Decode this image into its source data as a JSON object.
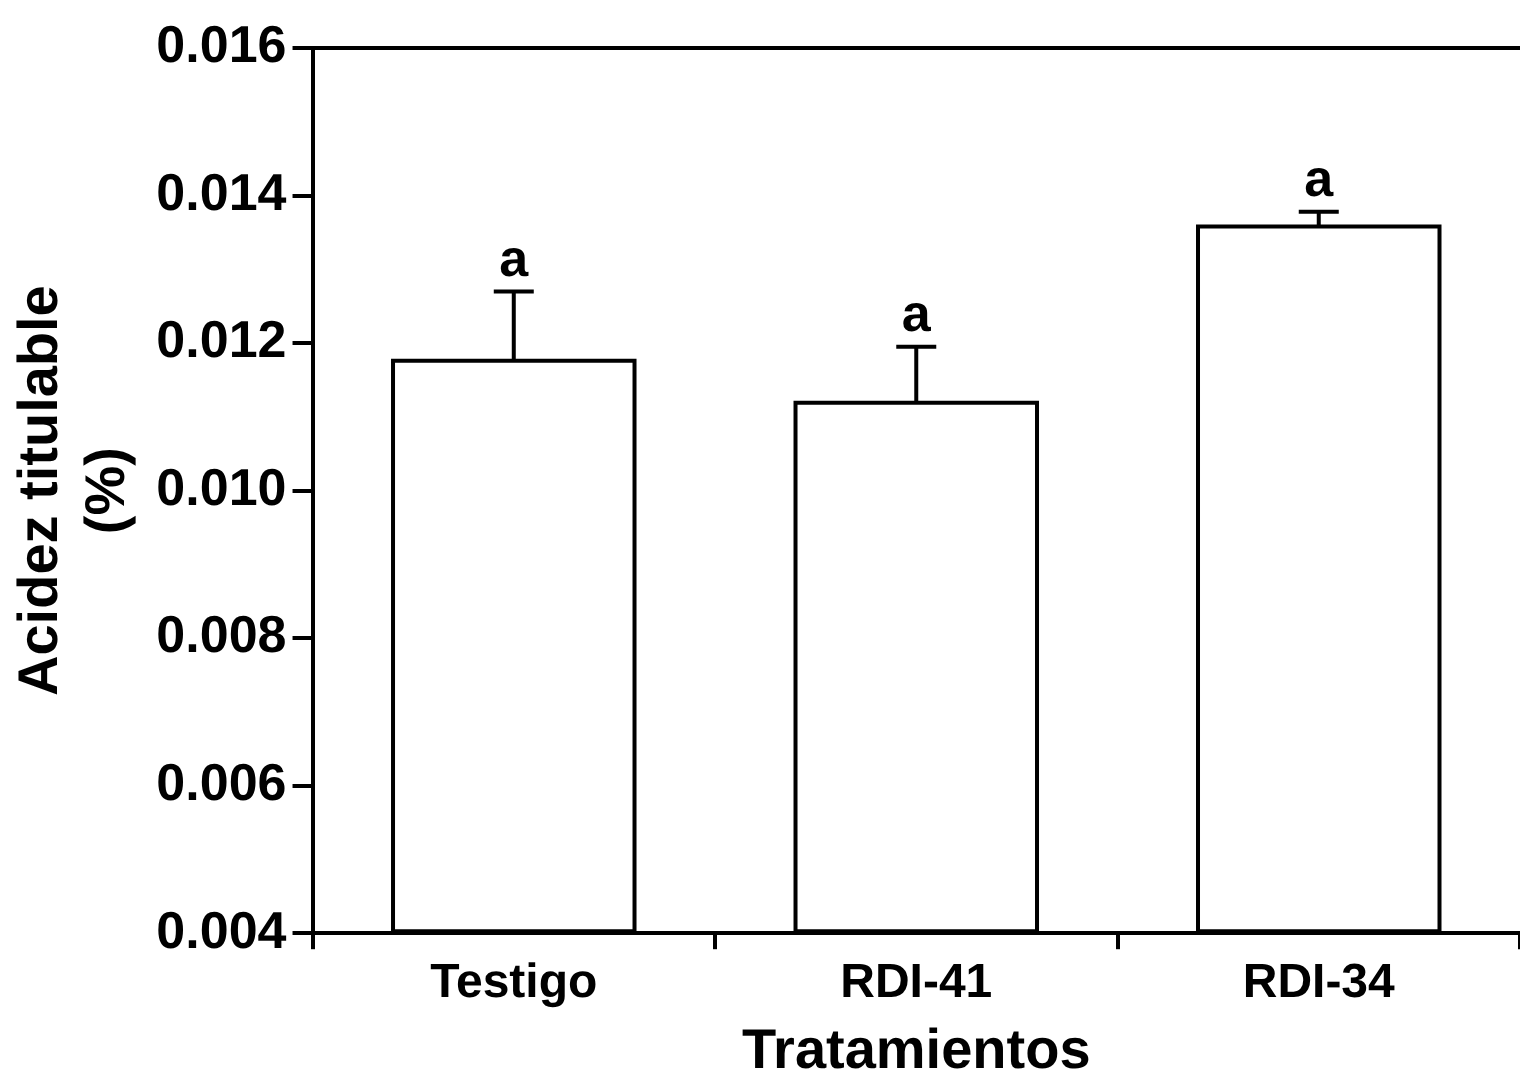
{
  "chart_data": {
    "type": "bar",
    "xlabel": "Tratamientos",
    "ylabel": "Acidez titulable\n(%)",
    "categories": [
      "Testigo",
      "RDI-41",
      "RDI-34"
    ],
    "values": [
      0.01176,
      0.01119,
      0.01358
    ],
    "errors": [
      [
        0.01176,
        0.0127
      ],
      [
        0.01119,
        0.01195
      ],
      [
        0.01358,
        0.01378
      ]
    ],
    "color": "#ffffff",
    "ylim": [
      0.004,
      0.016
    ],
    "yticks": [
      0.004,
      0.006,
      0.008,
      {
        "value": 0.01,
        "label": "0.010"
      },
      0.012,
      0.014,
      0.016
    ],
    "annotations": [
      "a",
      "a",
      "a"
    ],
    "grid": false,
    "legend": false
  }
}
